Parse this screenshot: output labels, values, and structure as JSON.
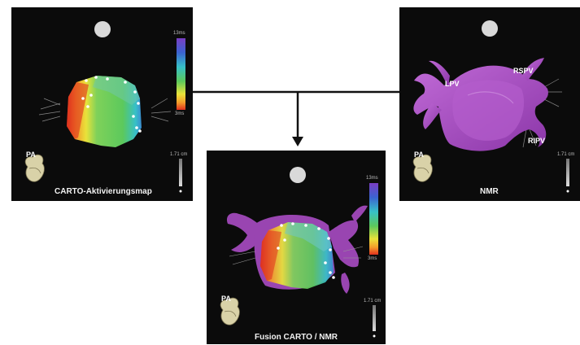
{
  "panels": {
    "left": {
      "caption": "CARTO-Aktivierungsmap",
      "orientation": "PA",
      "scale_top": "13ms",
      "scale_bottom": "3ms",
      "ruler": "1.71 cm"
    },
    "right": {
      "caption": "NMR",
      "orientation": "PA",
      "ruler": "1.71 cm"
    },
    "mid": {
      "caption": "Fusion CARTO / NMR",
      "orientation": "PA",
      "scale_top": "13ms",
      "scale_bottom": "3ms",
      "ruler": "1.71 cm"
    }
  },
  "vessel_labels": {
    "lpv": "LPV",
    "rspv": "RSPV",
    "ripv": "RIPV"
  },
  "colors": {
    "panel_bg": "#0b0b0b",
    "carto_red": "#e0301e",
    "carto_orange": "#f39a2a",
    "carto_yellow": "#e9e33a",
    "carto_green": "#5cc95c",
    "carto_cyan": "#37c0c8",
    "carto_blue": "#3b63d0",
    "carto_purple": "#6a3fc0",
    "nmr_purple": "#a94cc4"
  },
  "icons": [
    "heart-icon",
    "ruler-icon",
    "spot-icon",
    "arrow-down-icon"
  ]
}
